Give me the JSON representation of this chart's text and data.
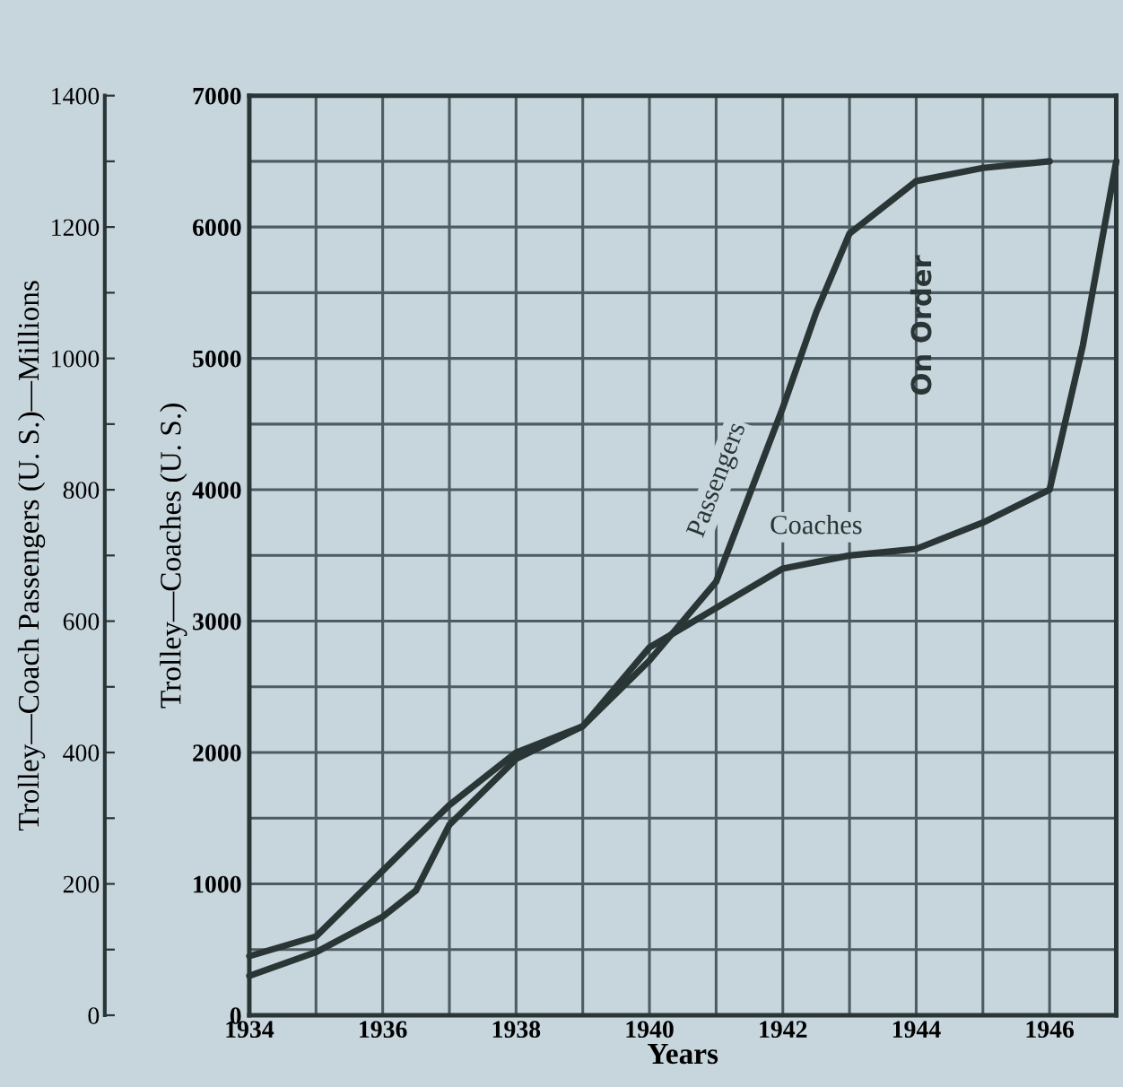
{
  "chart_data": {
    "type": "line",
    "xlabel": "Years",
    "ylabel": "Trolley—Coaches (U. S.)",
    "y2label": "Trolley—Coach Passengers (U. S.)—Millions",
    "x": [
      1934,
      1935,
      1936,
      1936.5,
      1937,
      1938,
      1939,
      1940,
      1941,
      1942,
      1943,
      1944,
      1945,
      1946,
      1946.5,
      1947
    ],
    "series": [
      {
        "name": "Passengers",
        "color": "#2a3535",
        "axis": "y2",
        "x": [
          1934,
          1935,
          1936,
          1936.5,
          1937,
          1938,
          1939,
          1940,
          1941,
          1942,
          1942.5,
          1943,
          1944,
          1945,
          1946
        ],
        "values": [
          60,
          96,
          150,
          190,
          290,
          390,
          440,
          540,
          660,
          925,
          1070,
          1190,
          1270,
          1290,
          1300
        ]
      },
      {
        "name": "Coaches",
        "color": "#2a3535",
        "values": [
          450,
          600,
          1100,
          1350,
          1600,
          2000,
          2200,
          2800,
          3100,
          3400,
          3500,
          3550,
          3750,
          4000,
          5100,
          6500
        ]
      }
    ],
    "xlim": [
      1934,
      1947
    ],
    "xticks": [
      1934,
      {
        "value": 1935,
        "label": null
      },
      1936,
      {
        "value": 1937,
        "label": null
      },
      1938,
      {
        "value": 1939,
        "label": null
      },
      1940,
      {
        "value": 1941,
        "label": null
      },
      1942,
      {
        "value": 1943,
        "label": null
      },
      1944,
      {
        "value": 1945,
        "label": null
      },
      1946,
      {
        "value": 1947,
        "label": null
      }
    ],
    "ylim": [
      0,
      7000
    ],
    "yticks": [
      0,
      {
        "value": 500,
        "label": null
      },
      1000,
      {
        "value": 1500,
        "label": null
      },
      2000,
      {
        "value": 2500,
        "label": null
      },
      3000,
      {
        "value": 3500,
        "label": null
      },
      4000,
      {
        "value": 4500,
        "label": null
      },
      5000,
      {
        "value": 5500,
        "label": null
      },
      6000,
      {
        "value": 6500,
        "label": null
      },
      7000
    ],
    "y2lim": [
      0,
      1400
    ],
    "y2ticks": [
      0,
      {
        "value": 100,
        "label": null
      },
      200,
      {
        "value": 300,
        "label": null
      },
      400,
      {
        "value": 500,
        "label": null
      },
      600,
      {
        "value": 700,
        "label": null
      },
      800,
      {
        "value": 900,
        "label": null
      },
      1000,
      {
        "value": 1100,
        "label": null
      },
      1200,
      {
        "value": 1300,
        "label": null
      },
      1400
    ],
    "annotations": [
      "On Order"
    ],
    "grid": true,
    "legend": false,
    "marker": "none",
    "line_style": "solid"
  }
}
